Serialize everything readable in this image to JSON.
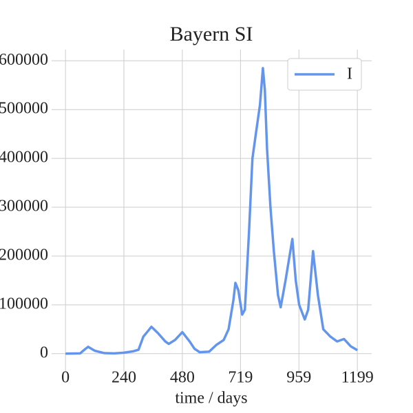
{
  "chart_data": {
    "type": "line",
    "title": "Bayern SI",
    "xlabel": "time / days",
    "x": [
      0,
      60,
      80,
      93,
      120,
      160,
      200,
      240,
      280,
      300,
      320,
      340,
      353,
      380,
      410,
      424,
      450,
      480,
      510,
      530,
      551,
      590,
      620,
      650,
      670,
      690,
      698,
      710,
      726,
      737,
      754,
      768,
      782,
      799,
      811,
      819,
      828,
      842,
      856,
      873,
      884,
      904,
      932,
      946,
      960,
      983,
      997,
      1017,
      1037,
      1059,
      1088,
      1116,
      1144,
      1172,
      1199
    ],
    "series": [
      {
        "name": "I",
        "color": "#6495ed",
        "values": [
          0,
          500,
          9000,
          14000,
          6000,
          1000,
          500,
          2000,
          5000,
          8000,
          35000,
          47000,
          55000,
          42000,
          25000,
          20000,
          28000,
          44000,
          25000,
          10000,
          3000,
          4000,
          18000,
          28000,
          50000,
          110000,
          145000,
          130000,
          80000,
          90000,
          250000,
          400000,
          450000,
          510000,
          585000,
          540000,
          420000,
          300000,
          210000,
          120000,
          95000,
          150000,
          235000,
          150000,
          100000,
          70000,
          90000,
          210000,
          120000,
          50000,
          35000,
          25000,
          30000,
          15000,
          7000
        ]
      }
    ],
    "xlim": [
      -57,
      1258
    ],
    "ylim": [
      -37000,
      623000
    ],
    "xticks": [
      0,
      240,
      480,
      719,
      959,
      1199
    ],
    "yticks": [
      0,
      100000,
      200000,
      300000,
      400000,
      500000,
      600000
    ],
    "grid": true,
    "legend": "upper right"
  }
}
